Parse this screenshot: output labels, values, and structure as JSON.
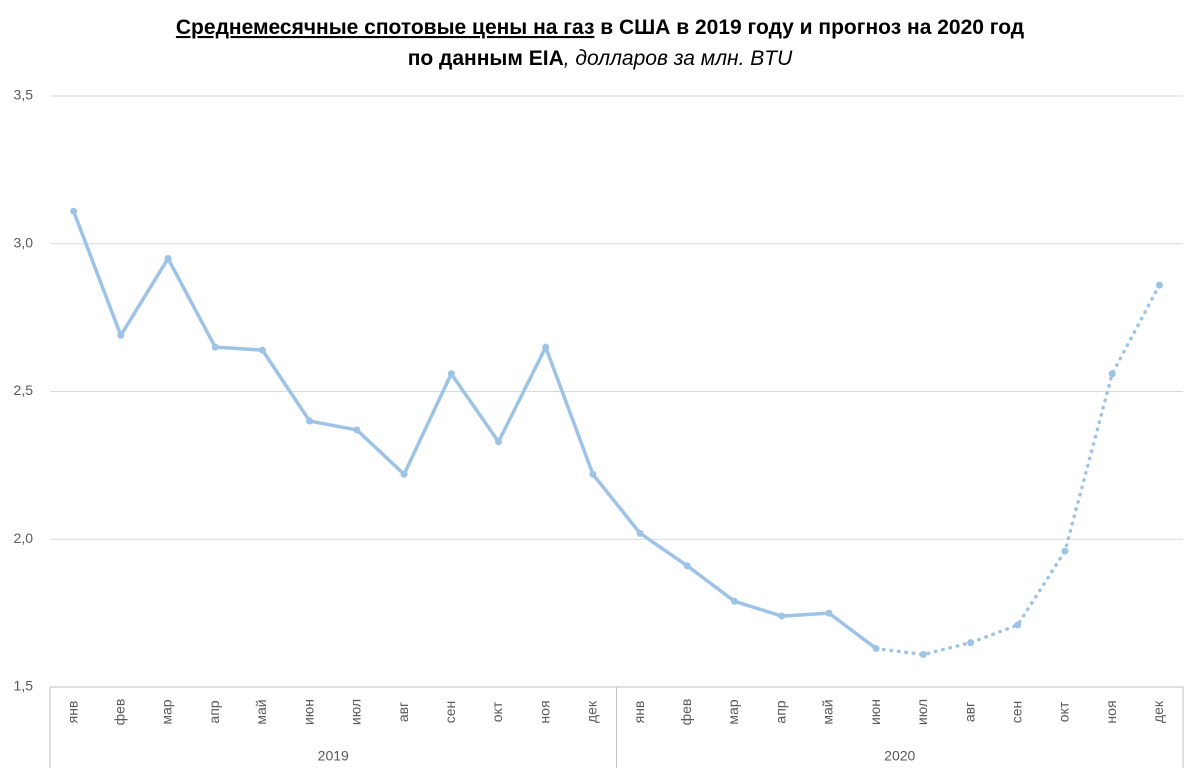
{
  "chart_data": {
    "type": "line",
    "title_parts": {
      "underlined": "Среднемесячные спотовые цены на газ",
      "rest": " в США в 2019 году и прогноз на 2020 год",
      "source": "по данным EIA",
      "units": ", долларов за млн. BTU"
    },
    "categories": [
      "янв",
      "фев",
      "мар",
      "апр",
      "май",
      "июн",
      "июл",
      "авг",
      "сен",
      "окт",
      "ноя",
      "дек",
      "янв",
      "фев",
      "мар",
      "апр",
      "май",
      "июн",
      "июл",
      "авг",
      "сен",
      "окт",
      "ноя",
      "дек"
    ],
    "groups": [
      {
        "label": "2019",
        "count": 12
      },
      {
        "label": "2020",
        "count": 12
      }
    ],
    "values": [
      3.11,
      2.69,
      2.95,
      2.65,
      2.64,
      2.4,
      2.37,
      2.22,
      2.56,
      2.33,
      2.65,
      2.22,
      2.02,
      1.91,
      1.79,
      1.74,
      1.75,
      1.63,
      1.61,
      1.65,
      1.71,
      1.96,
      2.56,
      2.86
    ],
    "dotted_from": 17,
    "color": "#9dc3e6",
    "ylim": [
      1.5,
      3.5
    ],
    "yticks": [
      {
        "value": 1.5,
        "label": "1,5"
      },
      {
        "value": 2.0,
        "label": "2,0"
      },
      {
        "value": 2.5,
        "label": "2,5"
      },
      {
        "value": 3.0,
        "label": "3,0"
      },
      {
        "value": 3.5,
        "label": "3,5"
      }
    ],
    "grid": true
  }
}
